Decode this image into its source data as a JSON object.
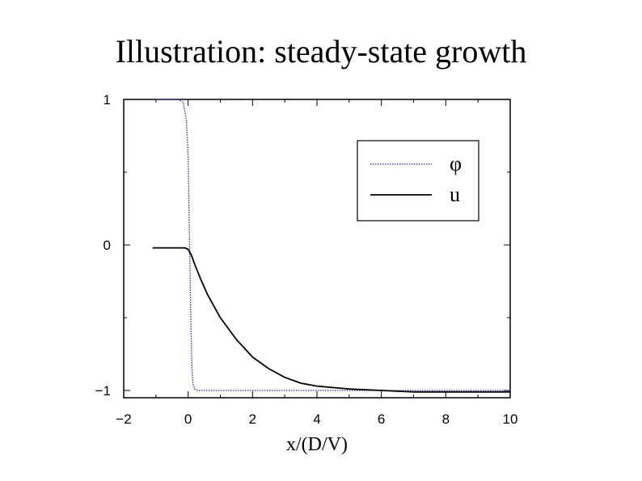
{
  "chart_data": {
    "type": "line",
    "title": "Illustration: steady-state growth",
    "xlabel": "x/(D/V)",
    "ylabel": "",
    "xlim": [
      -2,
      10
    ],
    "ylim": [
      -1.05,
      1
    ],
    "grid": false,
    "legend_position": "top-right",
    "x_ticks": [
      {
        "value": -2,
        "label": "−2"
      },
      {
        "value": 0,
        "label": "0"
      },
      {
        "value": 2,
        "label": "2"
      },
      {
        "value": 4,
        "label": "4"
      },
      {
        "value": 6,
        "label": "6"
      },
      {
        "value": 8,
        "label": "8"
      },
      {
        "value": 10,
        "label": "10"
      }
    ],
    "y_ticks": [
      {
        "value": 1,
        "label": "1"
      },
      {
        "value": 0,
        "label": "0"
      },
      {
        "value": -1,
        "label": "−1"
      }
    ],
    "series": [
      {
        "name": "φ",
        "style": "dotted",
        "color": "#2b2b9a",
        "x": [
          -1.0,
          -0.3,
          -0.15,
          -0.05,
          0.0,
          0.03,
          0.06,
          0.09,
          0.12,
          0.15,
          0.2,
          0.3,
          0.5,
          2,
          4,
          6,
          8,
          10
        ],
        "y": [
          1.0,
          1.0,
          0.98,
          0.85,
          0.6,
          0.2,
          -0.2,
          -0.6,
          -0.85,
          -0.95,
          -0.99,
          -1.0,
          -1.0,
          -1.0,
          -1.0,
          -1.0,
          -1.0,
          -1.0
        ]
      },
      {
        "name": "u",
        "style": "solid",
        "color": "#000000",
        "x": [
          -1.1,
          -0.5,
          -0.1,
          0.0,
          0.1,
          0.2,
          0.4,
          0.6,
          0.8,
          1.0,
          1.5,
          2.0,
          2.5,
          3.0,
          3.5,
          4.0,
          5.0,
          6.0,
          7.0,
          8.0,
          9.0,
          10.0
        ],
        "y": [
          -0.02,
          -0.02,
          -0.02,
          -0.03,
          -0.07,
          -0.13,
          -0.24,
          -0.34,
          -0.42,
          -0.5,
          -0.65,
          -0.77,
          -0.85,
          -0.91,
          -0.95,
          -0.97,
          -0.99,
          -1.0,
          -1.01,
          -1.01,
          -1.01,
          -1.01
        ]
      }
    ]
  }
}
